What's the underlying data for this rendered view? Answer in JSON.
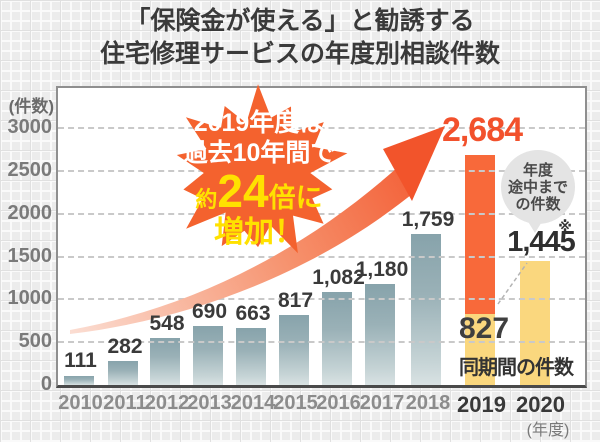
{
  "title": {
    "line1": "「保険金が使える」と勧誘する",
    "line2": "住宅修理サービスの年度別相談件数"
  },
  "y_axis": {
    "unit_label": "(件数)"
  },
  "x_axis": {
    "unit_label": "(年度)"
  },
  "chart_data": {
    "type": "bar",
    "title": "「保険金が使える」と勧誘する住宅修理サービスの年度別相談件数",
    "categories": [
      "2010",
      "2011",
      "2012",
      "2013",
      "2014",
      "2015",
      "2016",
      "2017",
      "2018",
      "2019",
      "2020"
    ],
    "values": [
      111,
      282,
      548,
      690,
      663,
      817,
      1082,
      1180,
      1759,
      2684,
      1445
    ],
    "value_labels": [
      "111",
      "282",
      "548",
      "690",
      "663",
      "817",
      "1,082",
      "1,180",
      "1,759",
      "2,684",
      "1,445"
    ],
    "ylabel": "(件数)",
    "xlabel": "(年度)",
    "ylim": [
      0,
      3250
    ],
    "yticks": [
      0,
      500,
      1000,
      1500,
      2000,
      2500,
      3000
    ],
    "grid": "horizontal-dashed",
    "legend": "none",
    "notes": {
      "year_2019_total": 2684,
      "year_2019_same_period": 827,
      "year_2020_partial": 1445,
      "bar_color_default": "teal gradient",
      "bar_color_2019": "orange above 827, yellow below 827",
      "bar_color_2020": "yellow"
    }
  },
  "annotations": {
    "starburst": {
      "line1": "2019年度は",
      "line2": "過去10年間で",
      "line3_prefix": "約",
      "line3_number": "24",
      "line3_suffix": "倍に",
      "line4": "増加！"
    },
    "bubble": {
      "line1": "年度",
      "line2": "途中まで",
      "line3": "の件数"
    },
    "note_mark": "※",
    "value_2019": "2,684",
    "value_2020": "1,445",
    "same_period_value": "827",
    "same_period_label": "同期間の件数"
  },
  "colors": {
    "accent_orange": "#f8693a",
    "accent_orange_text": "#f2512c",
    "accent_yellow_bar": "#fad77e",
    "burst_orange": "#f4622e",
    "burst_yellow_text": "#ffe100",
    "bar_teal_top": "#87a3ab",
    "bar_teal_bottom": "#d9e2e3",
    "bubble_gray": "#e4e4e4",
    "text_dark": "#3a3a3a",
    "text_gray": "#8c8c8c"
  }
}
